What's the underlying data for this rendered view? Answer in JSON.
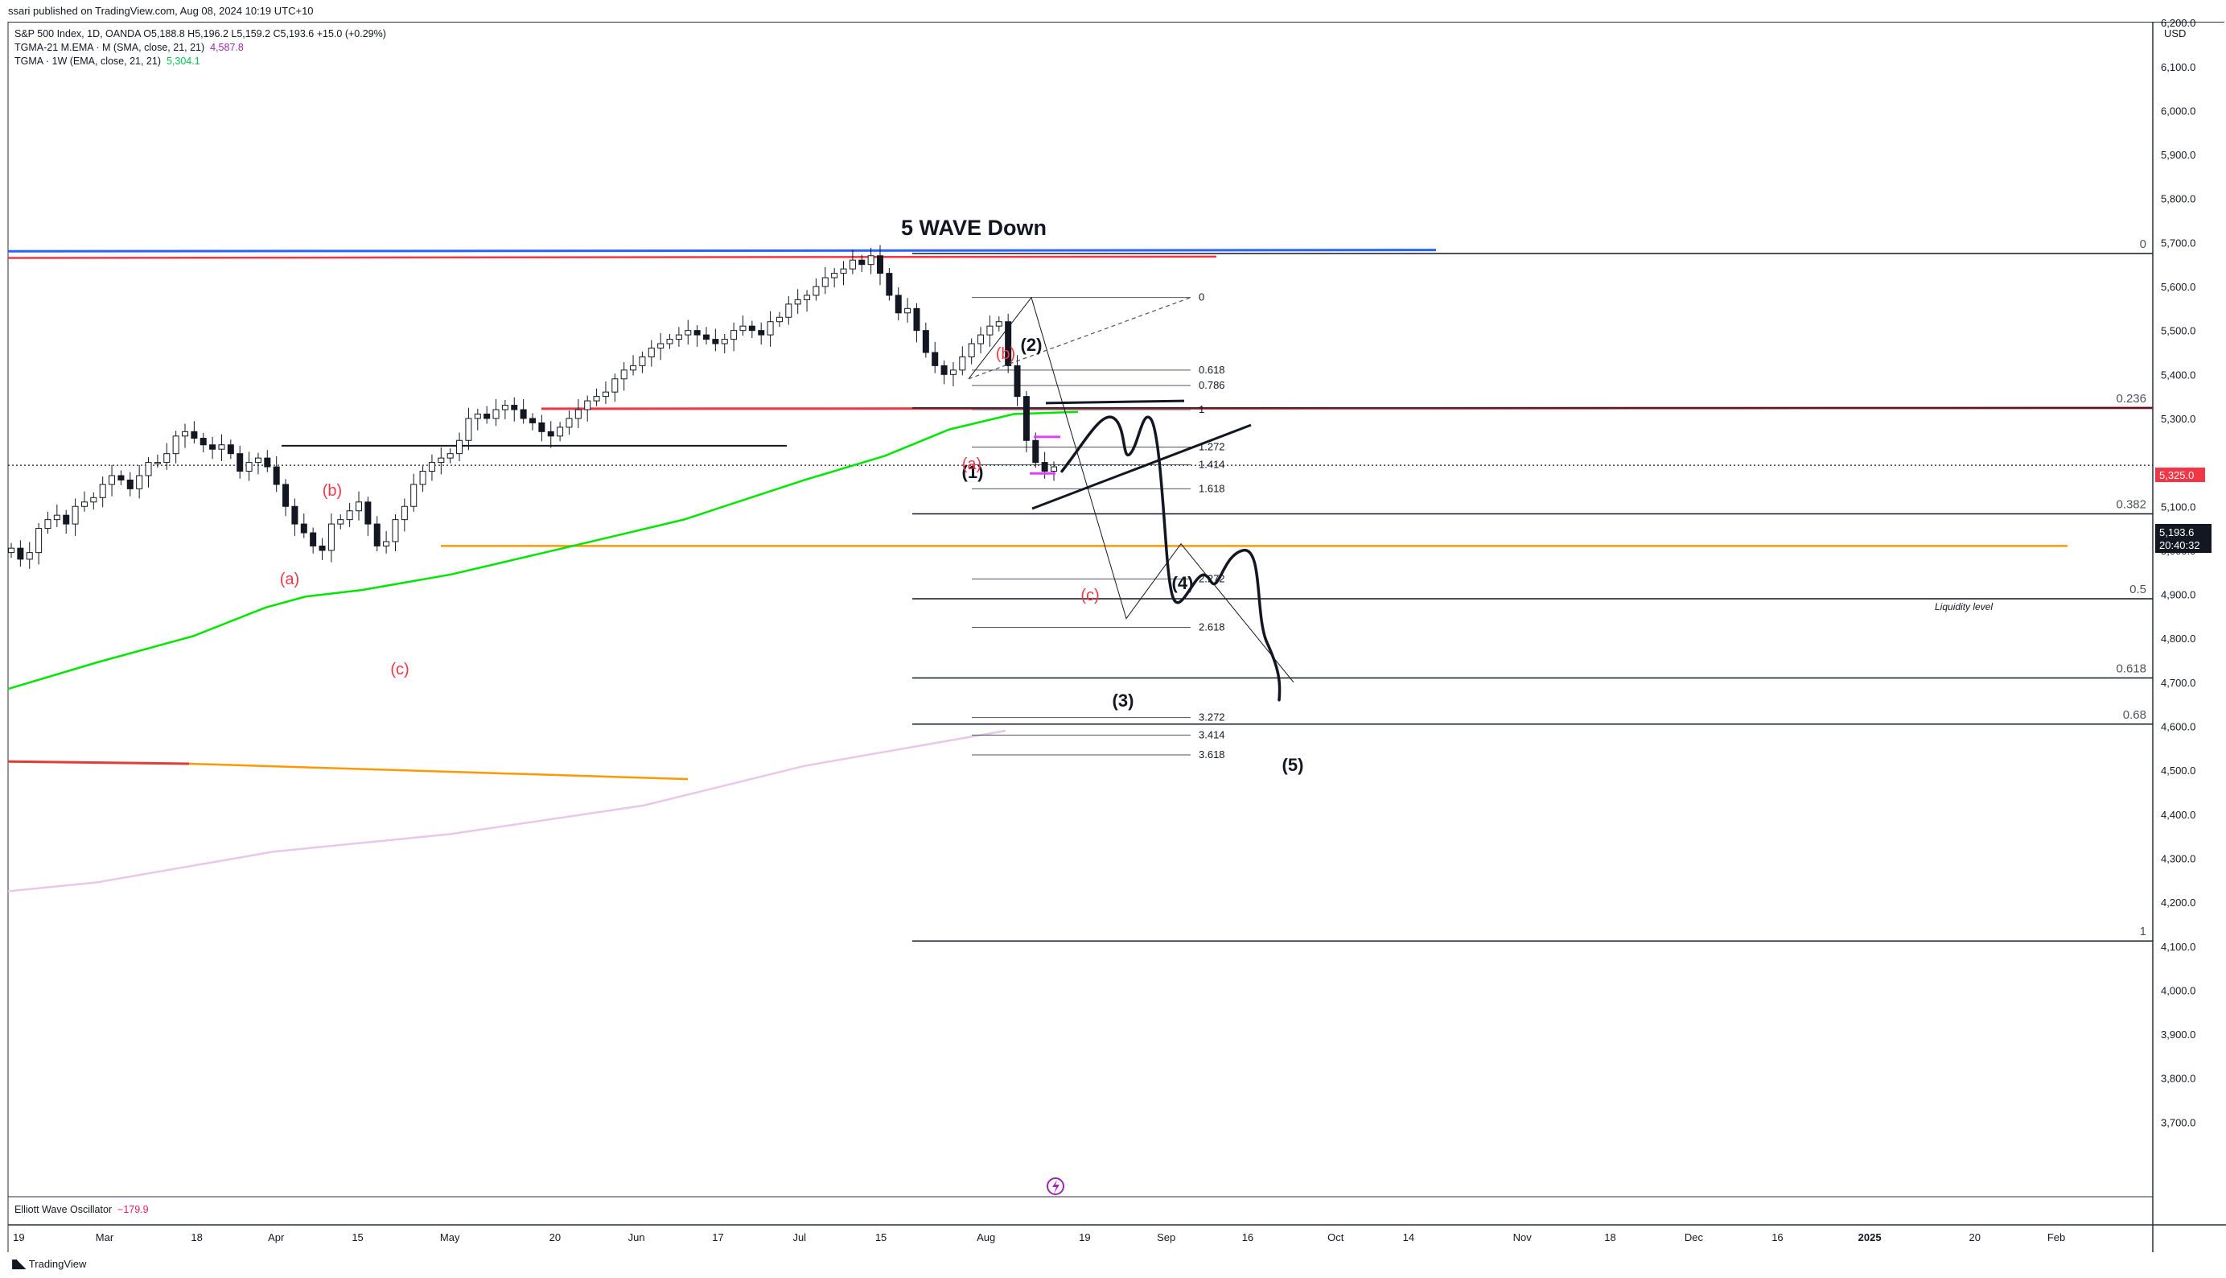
{
  "header": {
    "published": "ssari published on TradingView.com, Aug 08, 2024 10:19 UTC+10"
  },
  "legend": {
    "line1": "S&P 500 Index, 1D, OANDA  O5,188.8  H5,196.2  L5,159.2  C5,193.6  +15.0 (+0.29%)",
    "line2_label": "TGMA-21 M.EMA · M (SMA, close, 21, 21)",
    "line2_value": "4,587.8",
    "line3_label": "TGMA · 1W (EMA, close, 21, 21)",
    "line3_value": "5,304.1"
  },
  "oscillator": {
    "name": "Elliott Wave Oscillator",
    "value": "−179.9"
  },
  "currency": "USD",
  "footer": {
    "brand": "TradingView",
    "logo_icon": "tradingview-logo-icon"
  },
  "colors": {
    "ema_green": "#00e600",
    "red_line": "#f23645",
    "blue_line": "#2962ff",
    "orange_line": "#ff9800",
    "pink_ma": "#e8c7ea",
    "wave_red": "#f23645"
  },
  "chart_data": {
    "type": "candlestick",
    "title": "5 WAVE Down",
    "y_ticks": [
      "6,200.0",
      "6,100.0",
      "6,000.0",
      "5,900.0",
      "5,800.0",
      "5,700.0",
      "5,600.0",
      "5,500.0",
      "5,400.0",
      "5,300.0",
      "5,100.0",
      "5,000.0",
      "4,900.0",
      "4,800.0",
      "4,700.0",
      "4,600.0",
      "4,500.0",
      "4,400.0",
      "4,300.0",
      "4,200.0",
      "4,100.0",
      "4,000.0",
      "3,900.0",
      "3,800.0",
      "3,700.0"
    ],
    "x_ticks": [
      "19",
      "Mar",
      "18",
      "Apr",
      "15",
      "May",
      "20",
      "Jun",
      "17",
      "Jul",
      "15",
      "Aug",
      "19",
      "Sep",
      "16",
      "Oct",
      "14",
      "Nov",
      "18",
      "Dec",
      "16",
      "2025",
      "20",
      "Feb"
    ],
    "x_tick_pos": [
      0.005,
      0.045,
      0.088,
      0.125,
      0.163,
      0.206,
      0.255,
      0.293,
      0.331,
      0.369,
      0.407,
      0.456,
      0.502,
      0.54,
      0.578,
      0.619,
      0.653,
      0.706,
      0.747,
      0.786,
      0.825,
      0.868,
      0.917,
      0.955
    ],
    "ylim": [
      3680,
      6300
    ],
    "last_price_label": "5,193.6",
    "countdown": "20:40:32",
    "red_level_label": "5,325.0",
    "closes": [
      5005,
      4980,
      4995,
      5050,
      5070,
      5080,
      5060,
      5100,
      5110,
      5120,
      5150,
      5170,
      5160,
      5140,
      5170,
      5200,
      5200,
      5220,
      5260,
      5270,
      5255,
      5240,
      5230,
      5240,
      5220,
      5180,
      5200,
      5210,
      5190,
      5150,
      5100,
      5060,
      5040,
      5010,
      5000,
      5060,
      5070,
      5090,
      5110,
      5060,
      5010,
      5020,
      5070,
      5100,
      5150,
      5180,
      5200,
      5210,
      5220,
      5250,
      5300,
      5310,
      5300,
      5320,
      5330,
      5320,
      5300,
      5290,
      5270,
      5260,
      5280,
      5300,
      5320,
      5340,
      5350,
      5360,
      5390,
      5410,
      5420,
      5440,
      5460,
      5470,
      5480,
      5490,
      5500,
      5490,
      5480,
      5470,
      5480,
      5500,
      5510,
      5500,
      5490,
      5520,
      5530,
      5560,
      5570,
      5580,
      5600,
      5620,
      5630,
      5640,
      5660,
      5650,
      5670,
      5630,
      5580,
      5540,
      5550,
      5500,
      5450,
      5420,
      5400,
      5410,
      5440,
      5470,
      5490,
      5510,
      5520,
      5420,
      5350,
      5250,
      5200,
      5180,
      5190
    ],
    "fib_labels_center": [
      "0",
      "0.618",
      "0.786",
      "1",
      "1.272",
      "1.414",
      "1.618",
      "2.272",
      "2.618",
      "3.272",
      "3.414",
      "3.618"
    ],
    "fib_values_center": [
      5575,
      5410,
      5375,
      5320,
      5235,
      5195,
      5140,
      4935,
      4825,
      4620,
      4580,
      4535
    ],
    "fib_labels_right": [
      "0",
      "0.236",
      "0.382",
      "0.5",
      "0.618",
      "0.68",
      "1"
    ],
    "fib_values_right": [
      5675,
      5324,
      5083,
      4890,
      4710,
      4605,
      4112
    ],
    "wave_labels_black": [
      "(1)",
      "(2)",
      "(3)",
      "(4)",
      "(5)"
    ],
    "wave_labels_red": [
      "(a)",
      "(b)",
      "(c)",
      "(b)",
      "(a)",
      "(c)"
    ],
    "liquidity_label": "Liquidity level",
    "liquidity_value": 5010
  }
}
